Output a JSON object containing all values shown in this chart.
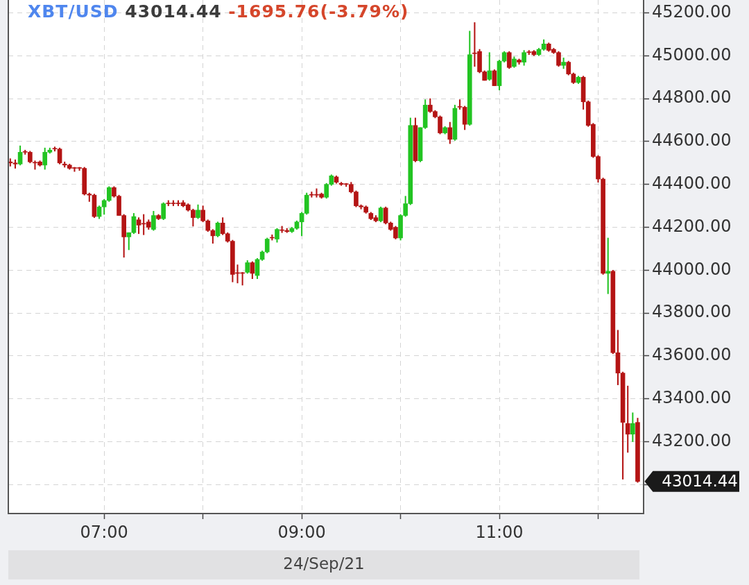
{
  "chart_data": {
    "type": "candlestick",
    "title": "XBT/USD 43014.44 -1695.76(-3.79%)",
    "xlabel": "24/Sep/21",
    "x": [
      6.05,
      6.1,
      6.15,
      6.2,
      6.25,
      6.3,
      6.35,
      6.4,
      6.45,
      6.5,
      6.55,
      6.6,
      6.65,
      6.7,
      6.75,
      6.8,
      6.85,
      6.9,
      6.95,
      7,
      7.05,
      7.1,
      7.15,
      7.2,
      7.25,
      7.3,
      7.35,
      7.4,
      7.45,
      7.5,
      7.55,
      7.6,
      7.65,
      7.7,
      7.75,
      7.8,
      7.85,
      7.9,
      7.95,
      8,
      8.05,
      8.1,
      8.15,
      8.2,
      8.25,
      8.3,
      8.35,
      8.4,
      8.45,
      8.5,
      8.55,
      8.6,
      8.65,
      8.7,
      8.75,
      8.8,
      8.85,
      8.9,
      8.95,
      9,
      9.05,
      9.1,
      9.15,
      9.2,
      9.25,
      9.3,
      9.35,
      9.4,
      9.45,
      9.5,
      9.55,
      9.6,
      9.65,
      9.7,
      9.75,
      9.8,
      9.85,
      9.9,
      9.95,
      10,
      10.05,
      10.1,
      10.15,
      10.2,
      10.25,
      10.3,
      10.35,
      10.4,
      10.45,
      10.5,
      10.55,
      10.6,
      10.65,
      10.7,
      10.75,
      10.8,
      10.85,
      10.9,
      10.95,
      11,
      11.05,
      11.1,
      11.15,
      11.2,
      11.25,
      11.3,
      11.35,
      11.4,
      11.45,
      11.5,
      11.55,
      11.6,
      11.65,
      11.7,
      11.75,
      11.8,
      11.85,
      11.9,
      11.95,
      12,
      12.05,
      12.1,
      12.15,
      12.2,
      12.25,
      12.3,
      12.35,
      12.4
    ],
    "ohlc": [
      [
        44505,
        44520,
        44485,
        44500
      ],
      [
        44500,
        44515,
        44475,
        44495
      ],
      [
        44495,
        44580,
        44490,
        44550
      ],
      [
        44550,
        44560,
        44540,
        44550
      ],
      [
        44550,
        44555,
        44500,
        44505
      ],
      [
        44500,
        44510,
        44470,
        44500
      ],
      [
        44505,
        44510,
        44485,
        44490
      ],
      [
        44490,
        44570,
        44470,
        44550
      ],
      [
        44550,
        44570,
        44545,
        44560
      ],
      [
        44565,
        44575,
        44555,
        44565
      ],
      [
        44565,
        44570,
        44495,
        44500
      ],
      [
        44495,
        44505,
        44480,
        44490
      ],
      [
        44490,
        44495,
        44470,
        44475
      ],
      [
        44475,
        44480,
        44460,
        44475
      ],
      [
        44475,
        44480,
        44465,
        44475
      ],
      [
        44475,
        44480,
        44350,
        44355
      ],
      [
        44355,
        44360,
        44320,
        44350
      ],
      [
        44350,
        44355,
        44245,
        44250
      ],
      [
        44250,
        44300,
        44240,
        44295
      ],
      [
        44295,
        44330,
        44260,
        44325
      ],
      [
        44325,
        44390,
        44320,
        44385
      ],
      [
        44385,
        44390,
        44340,
        44345
      ],
      [
        44345,
        44350,
        44255,
        44255
      ],
      [
        44255,
        44260,
        44060,
        44155
      ],
      [
        44155,
        44175,
        44095,
        44175
      ],
      [
        44175,
        44265,
        44170,
        44250
      ],
      [
        44235,
        44245,
        44170,
        44210
      ],
      [
        44215,
        44260,
        44165,
        44215
      ],
      [
        44225,
        44235,
        44190,
        44200
      ],
      [
        44190,
        44275,
        44185,
        44255
      ],
      [
        44255,
        44260,
        44235,
        44240
      ],
      [
        44240,
        44315,
        44235,
        44310
      ],
      [
        44310,
        44325,
        44300,
        44310
      ],
      [
        44310,
        44325,
        44300,
        44310
      ],
      [
        44310,
        44325,
        44300,
        44310
      ],
      [
        44315,
        44325,
        44295,
        44300
      ],
      [
        44305,
        44310,
        44275,
        44280
      ],
      [
        44280,
        44285,
        44205,
        44245
      ],
      [
        44245,
        44305,
        44240,
        44280
      ],
      [
        44280,
        44300,
        44225,
        44230
      ],
      [
        44230,
        44235,
        44180,
        44185
      ],
      [
        44185,
        44190,
        44125,
        44160
      ],
      [
        44160,
        44225,
        44155,
        44220
      ],
      [
        44220,
        44245,
        44165,
        44170
      ],
      [
        44170,
        44175,
        44130,
        44135
      ],
      [
        44135,
        44140,
        43945,
        43980
      ],
      [
        43985,
        44025,
        43940,
        43985
      ],
      [
        43985,
        43990,
        43930,
        43985
      ],
      [
        43990,
        44045,
        43985,
        44035
      ],
      [
        44035,
        44040,
        43960,
        43985
      ],
      [
        43975,
        44055,
        43960,
        44050
      ],
      [
        44050,
        44090,
        44045,
        44085
      ],
      [
        44085,
        44150,
        44080,
        44145
      ],
      [
        44150,
        44165,
        44140,
        44150
      ],
      [
        44145,
        44195,
        44130,
        44190
      ],
      [
        44185,
        44205,
        44175,
        44185
      ],
      [
        44185,
        44195,
        44175,
        44180
      ],
      [
        44180,
        44200,
        44175,
        44195
      ],
      [
        44195,
        44230,
        44190,
        44225
      ],
      [
        44225,
        44270,
        44160,
        44265
      ],
      [
        44265,
        44360,
        44260,
        44350
      ],
      [
        44350,
        44365,
        44340,
        44350
      ],
      [
        44350,
        44380,
        44340,
        44350
      ],
      [
        44355,
        44360,
        44335,
        44340
      ],
      [
        44340,
        44405,
        44335,
        44400
      ],
      [
        44400,
        44445,
        44395,
        44440
      ],
      [
        44435,
        44440,
        44405,
        44410
      ],
      [
        44405,
        44410,
        44395,
        44400
      ],
      [
        44400,
        44405,
        44390,
        44400
      ],
      [
        44400,
        44410,
        44360,
        44365
      ],
      [
        44365,
        44370,
        44295,
        44300
      ],
      [
        44300,
        44305,
        44285,
        44295
      ],
      [
        44295,
        44300,
        44265,
        44270
      ],
      [
        44265,
        44270,
        44235,
        44240
      ],
      [
        44245,
        44255,
        44225,
        44230
      ],
      [
        44230,
        44295,
        44225,
        44290
      ],
      [
        44290,
        44295,
        44215,
        44220
      ],
      [
        44220,
        44225,
        44185,
        44190
      ],
      [
        44200,
        44205,
        44145,
        44150
      ],
      [
        44150,
        44260,
        44140,
        44255
      ],
      [
        44255,
        44345,
        44250,
        44310
      ],
      [
        44310,
        44710,
        44305,
        44675
      ],
      [
        44675,
        44710,
        44505,
        44510
      ],
      [
        44510,
        44665,
        44505,
        44665
      ],
      [
        44665,
        44795,
        44660,
        44770
      ],
      [
        44770,
        44800,
        44735,
        44740
      ],
      [
        44740,
        44745,
        44710,
        44715
      ],
      [
        44715,
        44720,
        44635,
        44640
      ],
      [
        44640,
        44670,
        44635,
        44665
      ],
      [
        44665,
        44690,
        44590,
        44610
      ],
      [
        44610,
        44770,
        44605,
        44755
      ],
      [
        44760,
        44795,
        44750,
        44760
      ],
      [
        44760,
        44765,
        44655,
        44680
      ],
      [
        44680,
        45115,
        44675,
        45005
      ],
      [
        45010,
        45155,
        44950,
        45010
      ],
      [
        45020,
        45030,
        44920,
        44925
      ],
      [
        44925,
        44930,
        44885,
        44885
      ],
      [
        44890,
        45015,
        44885,
        44930
      ],
      [
        44930,
        44935,
        44860,
        44860
      ],
      [
        44860,
        44980,
        44840,
        44975
      ],
      [
        44975,
        45020,
        44970,
        45015
      ],
      [
        45015,
        45020,
        44940,
        44945
      ],
      [
        44950,
        44995,
        44945,
        44985
      ],
      [
        44980,
        44985,
        44960,
        44970
      ],
      [
        44970,
        45025,
        44955,
        45015
      ],
      [
        45015,
        45025,
        45005,
        45015
      ],
      [
        45020,
        45025,
        45000,
        45005
      ],
      [
        45005,
        45035,
        45000,
        45030
      ],
      [
        45030,
        45075,
        45025,
        45055
      ],
      [
        45055,
        45060,
        45020,
        45025
      ],
      [
        45030,
        45035,
        45010,
        45015
      ],
      [
        45015,
        45020,
        44950,
        44955
      ],
      [
        44955,
        44990,
        44940,
        44970
      ],
      [
        44970,
        44975,
        44910,
        44915
      ],
      [
        44915,
        44920,
        44870,
        44875
      ],
      [
        44875,
        44905,
        44870,
        44900
      ],
      [
        44900,
        44905,
        44750,
        44785
      ],
      [
        44785,
        44790,
        44670,
        44675
      ],
      [
        44680,
        44685,
        44525,
        44530
      ],
      [
        44530,
        44535,
        44410,
        44425
      ],
      [
        44425,
        44430,
        43980,
        43985
      ],
      [
        43985,
        44150,
        43890,
        43995
      ],
      [
        43995,
        44000,
        43610,
        43615
      ],
      [
        43615,
        43720,
        43465,
        43520
      ],
      [
        43520,
        43525,
        43025,
        43290
      ],
      [
        43285,
        43460,
        43150,
        43235
      ],
      [
        43235,
        43335,
        43200,
        43285
      ],
      [
        43290,
        43310,
        43010,
        43014.44
      ]
    ],
    "colors": [
      "#b41414",
      "#b41414",
      "#22c422",
      "#b41414",
      "#b41414",
      "#b41414",
      "#b41414",
      "#22c422",
      "#22c422",
      "#b41414",
      "#b41414",
      "#b41414",
      "#b41414",
      "#b41414",
      "#b41414",
      "#b41414",
      "#b41414",
      "#b41414",
      "#22c422",
      "#22c422",
      "#22c422",
      "#b41414",
      "#b41414",
      "#b41414",
      "#22c422",
      "#22c422",
      "#b41414",
      "#b41414",
      "#b41414",
      "#22c422",
      "#b41414",
      "#22c422",
      "#b41414",
      "#b41414",
      "#b41414",
      "#b41414",
      "#b41414",
      "#b41414",
      "#22c422",
      "#b41414",
      "#b41414",
      "#b41414",
      "#22c422",
      "#b41414",
      "#b41414",
      "#b41414",
      "#b41414",
      "#b41414",
      "#22c422",
      "#b41414",
      "#22c422",
      "#22c422",
      "#22c422",
      "#b41414",
      "#22c422",
      "#b41414",
      "#b41414",
      "#22c422",
      "#22c422",
      "#22c422",
      "#22c422",
      "#b41414",
      "#b41414",
      "#b41414",
      "#22c422",
      "#22c422",
      "#b41414",
      "#b41414",
      "#b41414",
      "#b41414",
      "#b41414",
      "#b41414",
      "#b41414",
      "#b41414",
      "#b41414",
      "#22c422",
      "#b41414",
      "#b41414",
      "#b41414",
      "#22c422",
      "#22c422",
      "#22c422",
      "#b41414",
      "#22c422",
      "#22c422",
      "#b41414",
      "#b41414",
      "#b41414",
      "#22c422",
      "#b41414",
      "#22c422",
      "#b41414",
      "#b41414",
      "#22c422",
      "#b41414",
      "#b41414",
      "#b41414",
      "#22c422",
      "#b41414",
      "#22c422",
      "#22c422",
      "#b41414",
      "#22c422",
      "#b41414",
      "#22c422",
      "#b41414",
      "#b41414",
      "#22c422",
      "#22c422",
      "#b41414",
      "#b41414",
      "#b41414",
      "#22c422",
      "#b41414",
      "#b41414",
      "#22c422",
      "#b41414",
      "#b41414",
      "#b41414",
      "#b41414",
      "#b41414",
      "#22c422",
      "#b41414",
      "#b41414",
      "#b41414",
      "#b41414",
      "#22c422",
      "#b41414"
    ],
    "xlim": [
      6.03,
      12.46
    ],
    "xticks": [
      {
        "value": 7,
        "label": "07:00"
      },
      {
        "value": 8,
        "label": null
      },
      {
        "value": 9,
        "label": "09:00"
      },
      {
        "value": 10,
        "label": null
      },
      {
        "value": 11,
        "label": "11:00"
      },
      {
        "value": 12,
        "label": null
      }
    ],
    "ylim": [
      42865,
      45260
    ],
    "yticks": [
      {
        "value": 43000,
        "label": null
      },
      {
        "value": 43200,
        "label": "43200.00"
      },
      {
        "value": 43400,
        "label": "43400.00"
      },
      {
        "value": 43600,
        "label": "43600.00"
      },
      {
        "value": 43800,
        "label": "43800.00"
      },
      {
        "value": 44000,
        "label": "44000.00"
      },
      {
        "value": 44200,
        "label": "44200.00"
      },
      {
        "value": 44400,
        "label": "44400.00"
      },
      {
        "value": 44600,
        "label": "44600.00"
      },
      {
        "value": 44800,
        "label": "44800.00"
      },
      {
        "value": 45000,
        "label": "45000.00"
      },
      {
        "value": 45200,
        "label": "45200.00"
      }
    ],
    "grid": true,
    "annotations": [
      {
        "text": "43014.44",
        "x": 12.4,
        "y": 43014.44
      }
    ]
  }
}
